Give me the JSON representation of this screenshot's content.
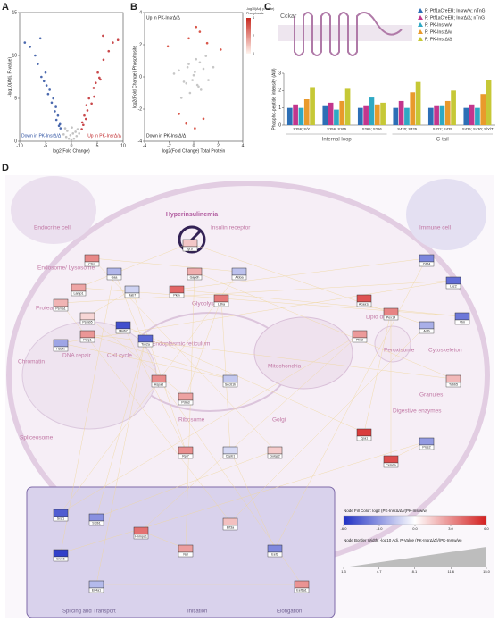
{
  "panels": {
    "a": "A",
    "b": "B",
    "c": "C",
    "d": "D"
  },
  "volcano": {
    "type": "scatter",
    "x_label": "log2(Fold Change)",
    "y_label": "-log10(Adj. P-value)",
    "xlim": [
      -10,
      10
    ],
    "ylim": [
      0,
      15
    ],
    "xticks": [
      -10,
      -5,
      0,
      5,
      10
    ],
    "yticks": [
      0,
      5,
      10,
      15
    ],
    "down_label": "Down in PK-InsrΔ/Δ",
    "up_label": "Up in PK-InsrΔ/Δ",
    "series": [
      {
        "name": "Down",
        "color": "#2b4fa0",
        "x": [
          -8,
          -6.5,
          -5,
          -4.2,
          -3.5,
          -3,
          -2.6,
          -2.2,
          -7,
          -5.8,
          -4.8,
          -3.8,
          -2.9,
          -2.4,
          -6,
          -9,
          -3.2,
          -4.5,
          -2.1,
          -5.3
        ],
        "y": [
          11,
          9,
          8,
          6,
          5,
          4,
          3,
          2,
          10,
          7.5,
          6.5,
          4.5,
          2.5,
          1.8,
          12,
          11.5,
          3.5,
          5.5,
          1.5,
          7
        ]
      },
      {
        "name": "Up",
        "color": "#c0282b",
        "x": [
          8,
          6.2,
          5.1,
          4.3,
          3.4,
          2.9,
          2.5,
          2.1,
          7.2,
          5.6,
          4.7,
          3.9,
          2.8,
          2.3,
          6.1,
          9,
          3.1,
          4.4,
          2.0,
          5.4
        ],
        "y": [
          11.5,
          9.5,
          8,
          6.2,
          5,
          4.2,
          3,
          2.2,
          10.5,
          7.2,
          6.8,
          4.4,
          2.6,
          1.9,
          12.3,
          11.8,
          3.6,
          5.2,
          1.4,
          7.4
        ]
      },
      {
        "name": "NS",
        "color": "#b8b8b8",
        "x": [
          -1.5,
          -1,
          -0.5,
          0,
          0.5,
          1,
          1.5,
          -0.8,
          0.8,
          -0.2,
          0.3,
          -1.2,
          1.2,
          0.1
        ],
        "y": [
          0.8,
          0.5,
          0.3,
          0.2,
          0.3,
          0.6,
          0.9,
          1.2,
          1.1,
          0.7,
          0.9,
          1.5,
          1.4,
          1.6
        ]
      }
    ]
  },
  "phospho": {
    "type": "scatter",
    "x_label": "log2(Fold Change) Total Protein",
    "y_label": "log2(Fold Change) Phosphosite",
    "xlim": [
      -4,
      4
    ],
    "ylim": [
      -4,
      4
    ],
    "xticks": [
      -4,
      -2,
      0,
      2,
      4
    ],
    "yticks": [
      -4,
      -2,
      0,
      2,
      4
    ],
    "up_label": "Up in PK-InsrΔ/Δ",
    "down_label": "Down in PK-InsrΔ/Δ",
    "colorbar": {
      "title": "-log10(Adj. p-value)",
      "subtitle": "Phosphosite",
      "ticks": [
        0,
        2,
        4
      ],
      "lim": [
        0,
        4
      ]
    },
    "series": [
      {
        "name": "NS",
        "color": "#bdbdbd",
        "x": [
          -1.2,
          -0.8,
          -0.4,
          0,
          0.4,
          0.8,
          1.2,
          -1.6,
          1.6,
          -0.3,
          0.2,
          0.6,
          -0.6,
          1,
          -1,
          0.1,
          -0.1,
          0.5,
          -0.5,
          0.3
        ],
        "y": [
          0.4,
          -0.3,
          0.8,
          0.1,
          -0.6,
          0.5,
          -0.2,
          0.2,
          0.6,
          -1,
          1.1,
          -0.8,
          -0.4,
          1.3,
          -1.3,
          0.3,
          -0.2,
          0.9,
          0.6,
          -0.5
        ]
      },
      {
        "name": "Sig",
        "color": "#d23a2a",
        "x": [
          0.5,
          -0.4,
          0.2,
          1.1,
          -1.2,
          0.8,
          -0.6,
          2.2,
          -2.1,
          0.1
        ],
        "y": [
          2.8,
          2.4,
          3.1,
          2.1,
          -2.3,
          -2.6,
          -2.9,
          1.7,
          1.9,
          -3.2
        ]
      }
    ]
  },
  "cckar": {
    "protein": "Cckar",
    "type": "bar",
    "y_label": "Phospho-peptide intensity (AU)",
    "categories": [
      "S256; S/Y",
      "S256; S265",
      "S265; S266",
      "S420; S425",
      "S422; S425",
      "S425; S430; S/Y/T"
    ],
    "regions": [
      "Internal loop",
      "C-tail"
    ],
    "ylim": [
      0,
      3
    ],
    "yticks": [
      0,
      1,
      2,
      3
    ],
    "series": [
      {
        "name": "F: Ptf1aCreER; Insrw/w; nTnG",
        "color": "#2d6fb6",
        "values": [
          1.0,
          1.1,
          1.0,
          1.0,
          1.0,
          1.0
        ]
      },
      {
        "name": "F: Ptf1aCreER; InsrΔ/Δ; nTnG",
        "color": "#c2368d",
        "values": [
          1.2,
          1.3,
          1.1,
          1.4,
          1.1,
          1.2
        ]
      },
      {
        "name": "F: PK-Insrw/w",
        "color": "#2fa9c4",
        "values": [
          1.0,
          0.9,
          1.6,
          1.0,
          1.1,
          1.0
        ]
      },
      {
        "name": "F: PK-InsrΔ/w",
        "color": "#e99a2c",
        "values": [
          1.5,
          1.4,
          1.2,
          1.9,
          1.4,
          1.8
        ]
      },
      {
        "name": "F: PK-InsrΔ/Δ",
        "color": "#c6c836",
        "values": [
          2.2,
          2.1,
          1.3,
          2.5,
          2.0,
          2.6
        ]
      }
    ]
  },
  "network": {
    "top_label": "Hyperinsulinemia",
    "receptor": "Insulin receptor",
    "zones": [
      "Endocrine cell",
      "Immune cell",
      "Endosome/ Lysosome",
      "Proteasome",
      "Glycolysis",
      "Chromatin",
      "DNA repair",
      "Cell cycle",
      "Endoplasmic reticulum",
      "Mitochondria",
      "Lipid droplet",
      "Peroxisome",
      "Cytoskeleton",
      "Granules",
      "Digestive enzymes",
      "Golgi",
      "Ribosome",
      "Spliceosome"
    ],
    "inset_zones": [
      "Splicing and Transport",
      "Initiation",
      "Elongation"
    ],
    "nodes": [
      {
        "label": "Igf1r",
        "value": 1.5
      },
      {
        "label": "Ctsd",
        "value": 3.2
      },
      {
        "label": "Gaa",
        "value": -2.1
      },
      {
        "label": "Lamp1",
        "value": 2.4
      },
      {
        "label": "Rab7",
        "value": -1.3
      },
      {
        "label": "Psma1",
        "value": 2.0
      },
      {
        "label": "Psmb5",
        "value": 1.1
      },
      {
        "label": "Pkm",
        "value": 4.1
      },
      {
        "label": "Ldha",
        "value": 3.6
      },
      {
        "label": "Gapdh",
        "value": 2.2
      },
      {
        "label": "Aldoa",
        "value": -1.8
      },
      {
        "label": "Cd74",
        "value": -3.5
      },
      {
        "label": "Lyz2",
        "value": -4.2
      },
      {
        "label": "H2afx",
        "value": -2.6
      },
      {
        "label": "Parp1",
        "value": 2.8
      },
      {
        "label": "Mki67",
        "value": -5.1
      },
      {
        "label": "Top2a",
        "value": -4.4
      },
      {
        "label": "Hspa5",
        "value": 3.1
      },
      {
        "label": "Pdia3",
        "value": 2.5
      },
      {
        "label": "Sec61b",
        "value": -1.6
      },
      {
        "label": "Acaa1a",
        "value": 4.6
      },
      {
        "label": "Pex14",
        "value": 3.3
      },
      {
        "label": "Plin2",
        "value": 2.7
      },
      {
        "label": "Actb",
        "value": -2.3
      },
      {
        "label": "Vim",
        "value": -3.9
      },
      {
        "label": "Tubb5",
        "value": 1.9
      },
      {
        "label": "Cpa1",
        "value": 5.2
      },
      {
        "label": "Cela2a",
        "value": 4.8
      },
      {
        "label": "Prss2",
        "value": -2.9
      },
      {
        "label": "Golga2",
        "value": 1.4
      },
      {
        "label": "Copb1",
        "value": -1.1
      },
      {
        "label": "Rpl7",
        "value": 3.0
      },
      {
        "label": "Srsf1",
        "value": -4.7
      },
      {
        "label": "Sf3b1",
        "value": -3.2
      },
      {
        "label": "Hnrnpa1",
        "value": 3.8
      },
      {
        "label": "Snrpb",
        "value": -5.5
      },
      {
        "label": "Ncl",
        "value": 2.6
      },
      {
        "label": "Eif4a1",
        "value": -2.0
      },
      {
        "label": "Eif3a",
        "value": 1.7
      },
      {
        "label": "Eef2",
        "value": -3.4
      },
      {
        "label": "Eef1a1",
        "value": 2.9
      }
    ],
    "fill_legend": {
      "title": "Node Fill Color: log2 (PK-InsrΔ/Δ)/(PK-Insrw/w)",
      "lim": [
        -6,
        6
      ],
      "ticks": [
        {
          "value": -6,
          "label": "-6.0"
        },
        {
          "value": -3,
          "label": "-3.0"
        },
        {
          "value": 0,
          "label": "0.0"
        },
        {
          "value": 3,
          "label": "3.0"
        },
        {
          "value": 6,
          "label": "6.0"
        }
      ]
    },
    "border_legend": {
      "title": "Node Border Width: -log10 Adj. P-Value (PK-InsrΔ/Δ)/(PK-Insrw/w)",
      "lim": [
        1.3,
        15
      ],
      "ticks": [
        1.3,
        4.7,
        8.1,
        11.6,
        {
          "value": 15,
          "label": "15.0"
        }
      ]
    }
  }
}
